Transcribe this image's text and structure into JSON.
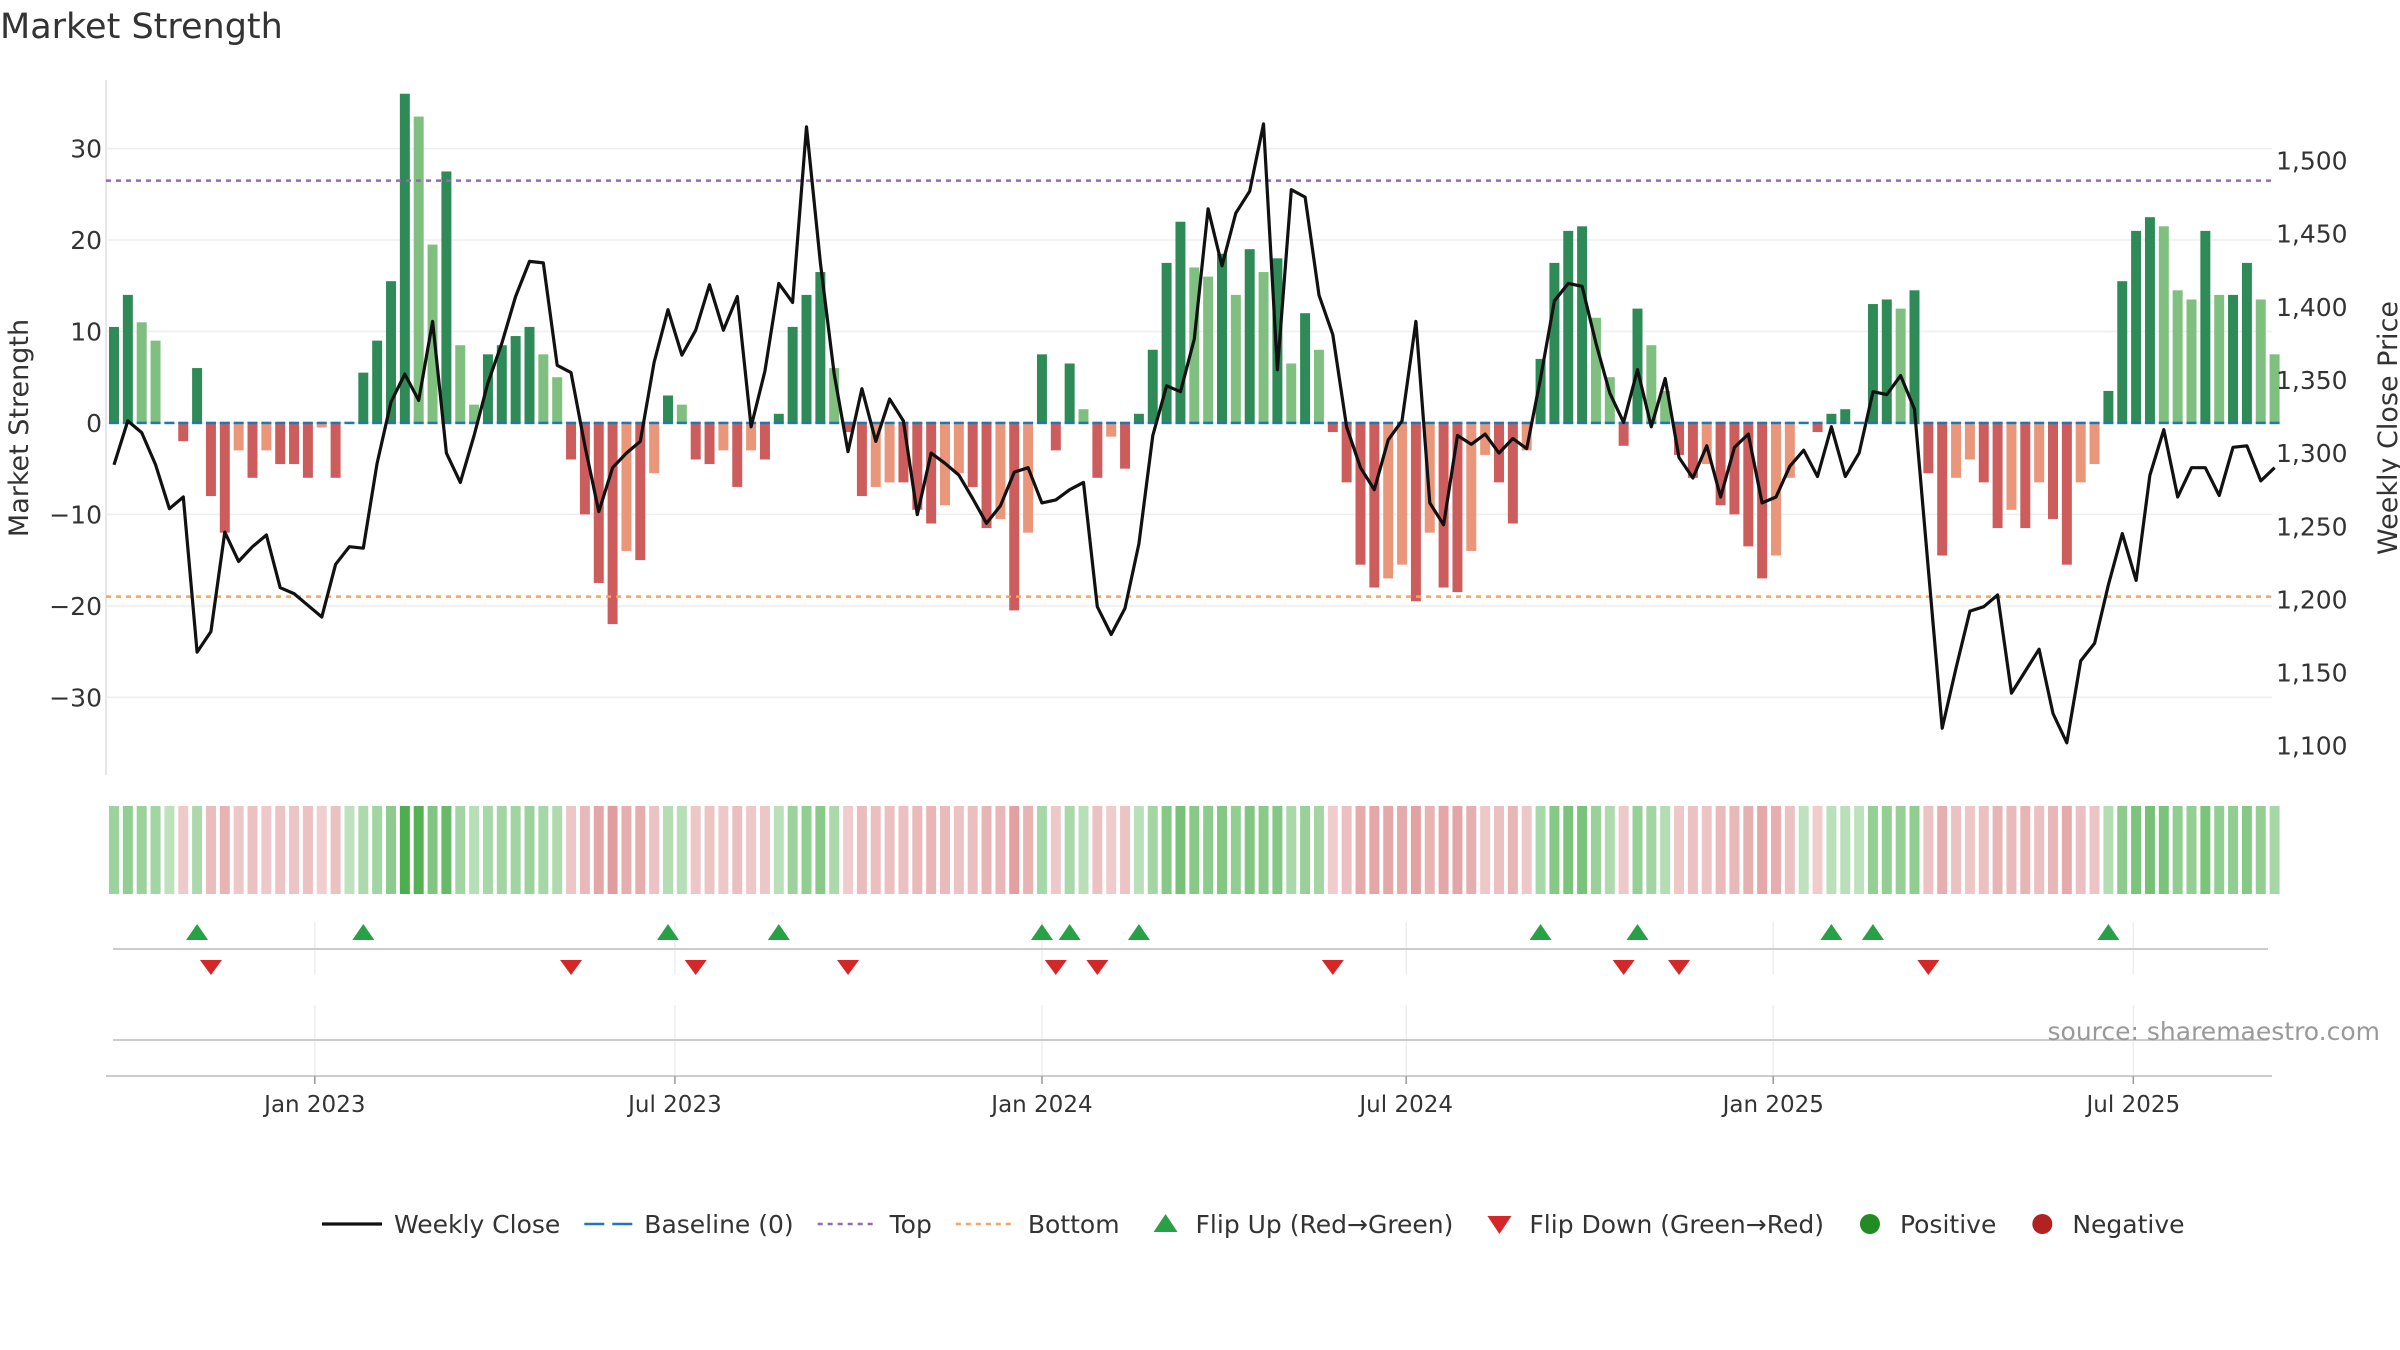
{
  "title": "Market Strength",
  "source": "source: sharemaestro.com",
  "colors": {
    "strong_pos": "#2e8b57",
    "weak_pos": "#7fbf7f",
    "strong_neg": "#cd5c5c",
    "weak_neg": "#e9967a",
    "close": "#111111",
    "baseline": "#1f77b4",
    "top": "#9467bd",
    "bottom": "#f4a460",
    "flip_up": "#27a046",
    "flip_down": "#d62728",
    "positive": "#228b22",
    "negative": "#b22222"
  },
  "legend": [
    {
      "key": "close",
      "label": "Weekly Close",
      "style": "line"
    },
    {
      "key": "baseline",
      "label": "Baseline (0)",
      "style": "dash"
    },
    {
      "key": "top",
      "label": "Top",
      "style": "dot"
    },
    {
      "key": "bottom",
      "label": "Bottom",
      "style": "dot"
    },
    {
      "key": "flip_up",
      "label": "Flip Up (Red→Green)",
      "style": "tri-up"
    },
    {
      "key": "flip_down",
      "label": "Flip Down (Green→Red)",
      "style": "tri-down"
    },
    {
      "key": "positive",
      "label": "Positive",
      "style": "circle"
    },
    {
      "key": "negative",
      "label": "Negative",
      "style": "circle"
    }
  ],
  "chart_data": {
    "type": "bar",
    "title": "Market Strength",
    "ylabel_left": "Market Strength",
    "ylabel_right": "Weekly Close Price",
    "ylim_left": [
      -38.5,
      37.5
    ],
    "ylim_right": [
      1080,
      1555
    ],
    "yticks_left": [
      30,
      20,
      10,
      0,
      -10,
      -20,
      -30
    ],
    "yticks_left_labels": [
      "30",
      "20",
      "10",
      "0",
      "−10",
      "−20",
      "−30"
    ],
    "yticks_right": [
      1500,
      1450,
      1400,
      1350,
      1300,
      1250,
      1200,
      1150,
      1100
    ],
    "yticks_right_labels": [
      "1,500",
      "1,450",
      "1,400",
      "1,350",
      "1,300",
      "1,250",
      "1,200",
      "1,150",
      "1,100"
    ],
    "top_line": 26.5,
    "bottom_line": -19,
    "x_start_week": 0,
    "xticks": [
      {
        "label": "Jan 2023",
        "week": 14.5
      },
      {
        "label": "Jul 2023",
        "week": 40.5
      },
      {
        "label": "Jan 2024",
        "week": 67
      },
      {
        "label": "Jul 2024",
        "week": 93.3
      },
      {
        "label": "Jan 2025",
        "week": 119.8
      },
      {
        "label": "Jul 2025",
        "week": 145.8
      }
    ],
    "strength": [
      10.5,
      14,
      11,
      9,
      0,
      -2,
      6,
      -8,
      -12,
      -3,
      -6,
      -3,
      -4.5,
      -4.5,
      -6,
      -0.5,
      -6,
      0,
      5.5,
      9,
      15.5,
      36,
      33.5,
      19.5,
      27.5,
      8.5,
      2,
      7.5,
      8.5,
      9.5,
      10.5,
      7.5,
      5,
      -4,
      -10,
      -17.5,
      -22,
      -14,
      -15,
      -5.5,
      3,
      2,
      -4,
      -4.5,
      -3,
      -7,
      -3,
      -4,
      1,
      10.5,
      14,
      16.5,
      6,
      -1,
      -8,
      -7,
      -6.5,
      -6.5,
      -9.5,
      -11,
      -9,
      -5.5,
      -7,
      -11.5,
      -10.5,
      -20.5,
      -12,
      7.5,
      -3,
      6.5,
      1.5,
      -6,
      -1.5,
      -5,
      1,
      8,
      17.5,
      22,
      17,
      16,
      18.5,
      14,
      19,
      16.5,
      18,
      6.5,
      12,
      8,
      -1,
      -6.5,
      -15.5,
      -18,
      -17,
      -15.5,
      -19.5,
      -12,
      -18,
      -18.5,
      -14,
      -3.5,
      -6.5,
      -11,
      -3,
      7,
      17.5,
      21,
      21.5,
      11.5,
      5,
      -2.5,
      12.5,
      8.5,
      3.5,
      -3.5,
      -6,
      -4.5,
      -9,
      -10,
      -13.5,
      -17,
      -14.5,
      -6,
      0,
      -1,
      1,
      1.5,
      0,
      13,
      13.5,
      12.5,
      14.5,
      -5.5,
      -14.5,
      -6,
      -4,
      -6.5,
      -11.5,
      -9.5,
      -11.5,
      -6.5,
      -10.5,
      -15.5,
      -6.5,
      -4.5,
      3.5,
      15.5,
      21,
      22.5,
      21.5,
      14.5,
      13.5,
      21,
      14,
      14,
      17.5,
      13.5,
      7.5
    ],
    "close": [
      1292,
      1322,
      1314,
      1292,
      1262,
      1270,
      1164,
      1178,
      1246,
      1226,
      1236,
      1244,
      1208,
      1204,
      1196,
      1188,
      1224,
      1236,
      1235,
      1293,
      1335,
      1354,
      1336,
      1390,
      1300,
      1280,
      1312,
      1348,
      1375,
      1407,
      1431,
      1430,
      1360,
      1355,
      1305,
      1260,
      1290,
      1300,
      1308,
      1362,
      1398,
      1367,
      1384,
      1415,
      1384,
      1407,
      1318,
      1356,
      1416,
      1403,
      1523,
      1430,
      1354,
      1301,
      1344,
      1308,
      1337,
      1322,
      1258,
      1300,
      1293,
      1285,
      1269,
      1252,
      1264,
      1287,
      1290,
      1266,
      1268,
      1275,
      1280,
      1195,
      1176,
      1194,
      1238,
      1312,
      1346,
      1342,
      1378,
      1467,
      1428,
      1464,
      1479,
      1525,
      1357,
      1480,
      1475,
      1408,
      1381,
      1318,
      1290,
      1275,
      1309,
      1322,
      1390,
      1266,
      1251,
      1312,
      1306,
      1313,
      1300,
      1310,
      1303,
      1351,
      1404,
      1416,
      1414,
      1375,
      1341,
      1321,
      1357,
      1318,
      1351,
      1297,
      1283,
      1305,
      1270,
      1304,
      1313,
      1266,
      1270,
      1291,
      1302,
      1284,
      1318,
      1284,
      1300,
      1342,
      1340,
      1353,
      1330,
      1221,
      1112,
      1153,
      1192,
      1195,
      1203,
      1136,
      1151,
      1166,
      1122,
      1102,
      1158,
      1170,
      1210,
      1245,
      1213,
      1285,
      1316,
      1270,
      1290,
      1290,
      1271,
      1304,
      1305,
      1281,
      1290
    ]
  }
}
